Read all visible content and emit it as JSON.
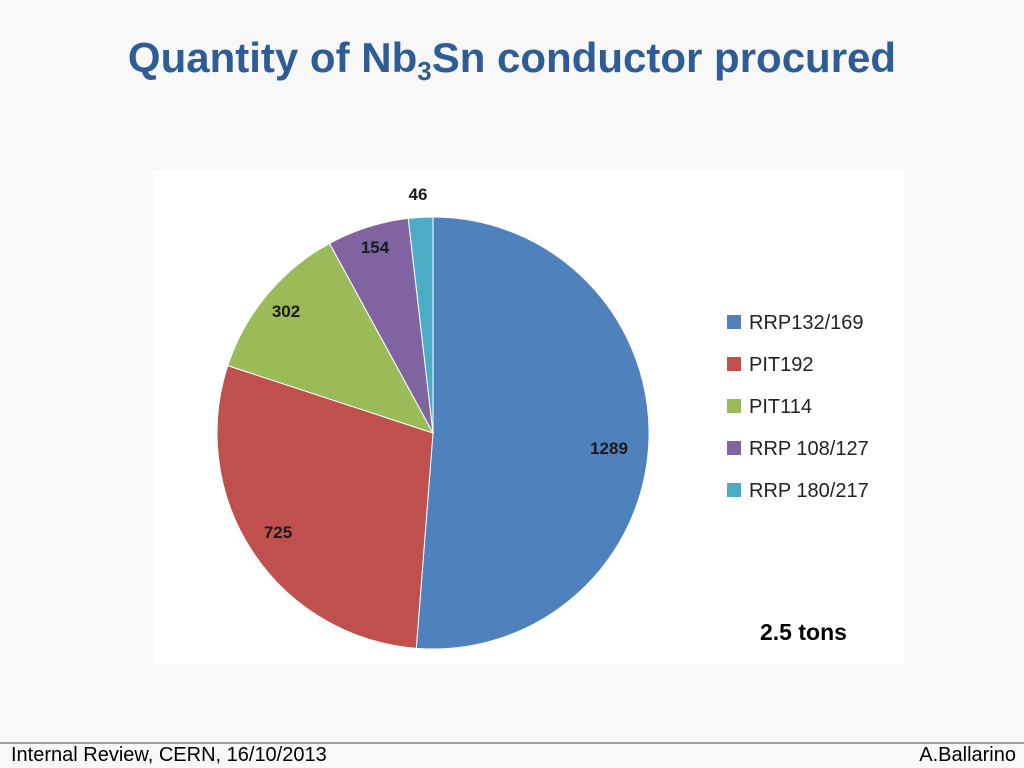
{
  "slide": {
    "title_pre": "Quantity of Nb",
    "title_sub": "3",
    "title_post": "Sn conductor procured",
    "footer_left": "Internal Review, CERN, 16/10/2013",
    "footer_right": "A.Ballarino"
  },
  "chart_data": {
    "type": "pie",
    "categories": [
      "RRP132/169",
      "PIT192",
      "PIT114",
      "RRP 108/127",
      "RRP 180/217"
    ],
    "values": [
      1289,
      725,
      302,
      154,
      46
    ],
    "colors": [
      "#4f81bd",
      "#c0504d",
      "#9bbb59",
      "#8064a2",
      "#4bacc6"
    ],
    "legend_position": "right",
    "annotation": "2.5 tons"
  }
}
